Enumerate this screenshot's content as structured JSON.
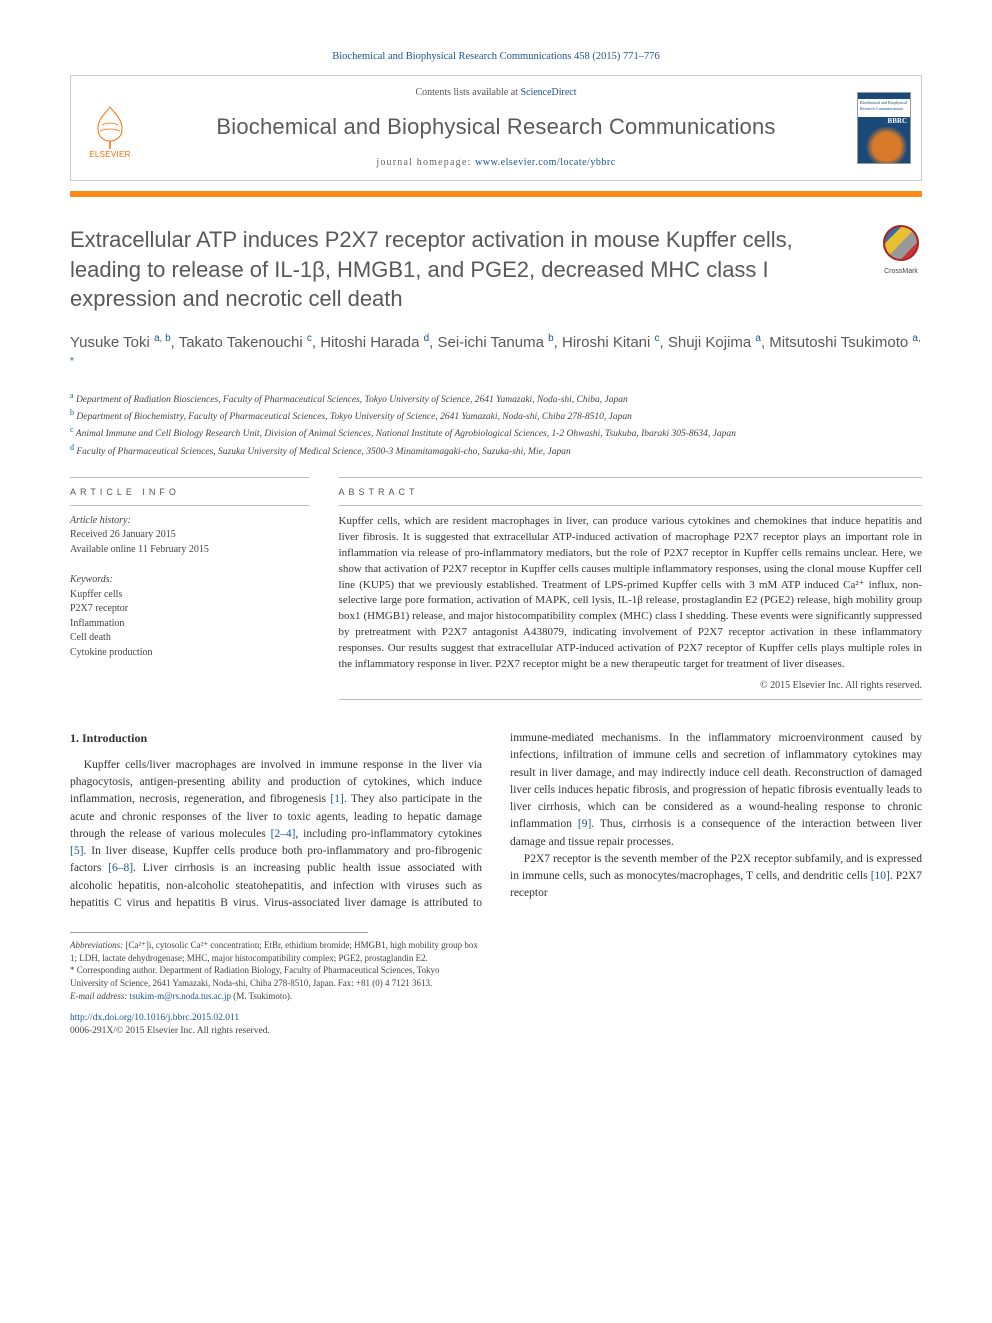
{
  "citation": "Biochemical and Biophysical Research Communications 458 (2015) 771–776",
  "contents_prefix": "Contents lists available at ",
  "contents_link": "ScienceDirect",
  "journal": "Biochemical and Biophysical Research Communications",
  "homepage_prefix": "journal homepage: ",
  "homepage_url": "www.elsevier.com/locate/ybbrc",
  "elsevier_label": "ELSEVIER",
  "cover_acronym": "BBRC",
  "crossmark": "CrossMark",
  "title": "Extracellular ATP induces P2X7 receptor activation in mouse Kupffer cells, leading to release of IL-1β, HMGB1, and PGE2, decreased MHC class I expression and necrotic cell death",
  "authors_html": "Yusuke Toki <sup class='aff'>a, b</sup>, Takato Takenouchi <sup class='aff'>c</sup>, Hitoshi Harada <sup class='aff'>d</sup>, Sei-ichi Tanuma <sup class='aff'>b</sup>, Hiroshi Kitani <sup class='aff'>c</sup>, Shuji Kojima <sup class='aff'>a</sup>, Mitsutoshi Tsukimoto <sup class='aff'>a, *</sup>",
  "affiliations": [
    {
      "sup": "a",
      "text": "Department of Radiation Biosciences, Faculty of Pharmaceutical Sciences, Tokyo University of Science, 2641 Yamazaki, Noda-shi, Chiba, Japan"
    },
    {
      "sup": "b",
      "text": "Department of Biochemistry, Faculty of Pharmaceutical Sciences, Tokyo University of Science, 2641 Yamazaki, Noda-shi, Chiba 278-8510, Japan"
    },
    {
      "sup": "c",
      "text": "Animal Immune and Cell Biology Research Unit, Division of Animal Sciences, National Institute of Agrobiological Sciences, 1-2 Ohwashi, Tsukuba, Ibaraki 305-8634, Japan"
    },
    {
      "sup": "d",
      "text": "Faculty of Pharmaceutical Sciences, Suzuka University of Medical Science, 3500-3 Minamitamagaki-cho, Suzuka-shi, Mie, Japan"
    }
  ],
  "info_label": "ARTICLE INFO",
  "abs_label": "ABSTRACT",
  "history": {
    "head": "Article history:",
    "received": "Received 26 January 2015",
    "online": "Available online 11 February 2015"
  },
  "keywords": {
    "head": "Keywords:",
    "items": [
      "Kupffer cells",
      "P2X7 receptor",
      "Inflammation",
      "Cell death",
      "Cytokine production"
    ]
  },
  "abstract": "Kupffer cells, which are resident macrophages in liver, can produce various cytokines and chemokines that induce hepatitis and liver fibrosis. It is suggested that extracellular ATP-induced activation of macrophage P2X7 receptor plays an important role in inflammation via release of pro-inflammatory mediators, but the role of P2X7 receptor in Kupffer cells remains unclear. Here, we show that activation of P2X7 receptor in Kupffer cells causes multiple inflammatory responses, using the clonal mouse Kupffer cell line (KUP5) that we previously established. Treatment of LPS-primed Kupffer cells with 3 mM ATP induced Ca²⁺ influx, non-selective large pore formation, activation of MAPK, cell lysis, IL-1β release, prostaglandin E2 (PGE2) release, high mobility group box1 (HMGB1) release, and major histocompatibility complex (MHC) class I shedding. These events were significantly suppressed by pretreatment with P2X7 antagonist A438079, indicating involvement of P2X7 receptor activation in these inflammatory responses. Our results suggest that extracellular ATP-induced activation of P2X7 receptor of Kupffer cells plays multiple roles in the inflammatory response in liver. P2X7 receptor might be a new therapeutic target for treatment of liver diseases.",
  "copyright": "© 2015 Elsevier Inc. All rights reserved.",
  "intro_heading": "1. Introduction",
  "intro_p1_a": "Kupffer cells/liver macrophages are involved in immune response in the liver via phagocytosis, antigen-presenting ability and production of cytokines, which induce inflammation, necrosis, regeneration, and fibrogenesis ",
  "intro_r1": "[1]",
  "intro_p1_b": ". They also participate in the acute and chronic responses of the liver to toxic agents, leading to hepatic damage through the release of various molecules ",
  "intro_r2": "[2–4]",
  "intro_p1_c": ", including pro-inflammatory cytokines ",
  "intro_r3": "[5]",
  "intro_p1_d": ". In liver disease, Kupffer cells produce both pro-inflammatory and pro-fibrogenic factors ",
  "intro_r4": "[6–8]",
  "intro_p1_e": ". Liver cirrhosis is an increasing public health issue associated with alcoholic hepatitis, non-alcoholic steatohepatitis, and infection with viruses such as hepatitis C virus and hepatitis B virus. Virus-associated liver damage is attributed to immune-mediated mechanisms. In the inflammatory microenvironment caused by infections, infiltration of immune cells and secretion of inflammatory cytokines may result in liver damage, and may indirectly induce cell death. Reconstruction of damaged liver cells induces hepatic fibrosis, and progression of hepatic fibrosis eventually leads to liver cirrhosis, which can be considered as a wound-healing response to chronic inflammation ",
  "intro_r5": "[9]",
  "intro_p1_f": ". Thus, cirrhosis is a consequence of the interaction between liver damage and tissue repair processes.",
  "intro_p2_a": "P2X7 receptor is the seventh member of the P2X receptor subfamily, and is expressed in immune cells, such as monocytes/macrophages, T cells, and dendritic cells ",
  "intro_r6": "[10]",
  "intro_p2_b": ". P2X7 receptor",
  "abbrev_label": "Abbreviations:",
  "abbrev_text": " [Ca²⁺]i, cytosolic Ca²⁺ concentration; EtBr, ethidium bromide; HMGB1, high mobility group box 1; LDH, lactate dehydrogenase; MHC, major histocompatibility complex; PGE2, prostaglandin E2.",
  "corr_label": "* Corresponding author.",
  "corr_text": " Department of Radiation Biology, Faculty of Pharmaceutical Sciences, Tokyo University of Science, 2641 Yamazaki, Noda-shi, Chiba 278-8510, Japan. Fax: +81 (0) 4 7121 3613.",
  "email_label": "E-mail address: ",
  "email": "tsukim-m@rs.noda.tus.ac.jp",
  "email_who": " (M. Tsukimoto).",
  "doi": "http://dx.doi.org/10.1016/j.bbrc.2015.02.011",
  "issn": "0006-291X/© 2015 Elsevier Inc. All rights reserved.",
  "colors": {
    "link": "#1a5490",
    "orange": "#ff8c1a",
    "heading_gray": "#595959"
  }
}
